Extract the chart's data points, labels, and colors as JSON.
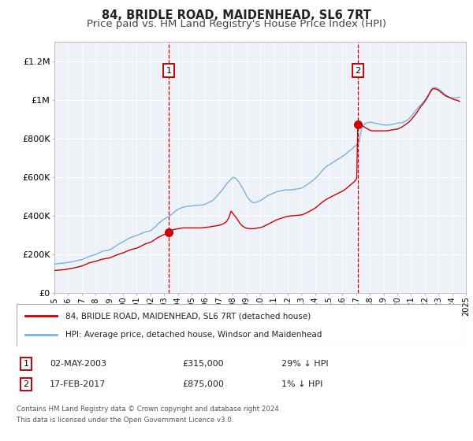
{
  "title": "84, BRIDLE ROAD, MAIDENHEAD, SL6 7RT",
  "subtitle": "Price paid vs. HM Land Registry's House Price Index (HPI)",
  "ylim": [
    0,
    1300000
  ],
  "yticks": [
    0,
    200000,
    400000,
    600000,
    800000,
    1000000,
    1200000
  ],
  "ytick_labels": [
    "£0",
    "£200K",
    "£400K",
    "£600K",
    "£800K",
    "£1M",
    "£1.2M"
  ],
  "hpi_color": "#7ab0e0",
  "price_color": "#cc0000",
  "bg_color": "#eef2f8",
  "grid_color": "#ffffff",
  "marker1_date": 2003.33,
  "marker1_price": 315000,
  "marker2_date": 2017.12,
  "marker2_price": 875000,
  "legend_label1": "84, BRIDLE ROAD, MAIDENHEAD, SL6 7RT (detached house)",
  "legend_label2": "HPI: Average price, detached house, Windsor and Maidenhead",
  "footnote1": "Contains HM Land Registry data © Crown copyright and database right 2024.",
  "footnote2": "This data is licensed under the Open Government Licence v3.0.",
  "title_fontsize": 10.5,
  "subtitle_fontsize": 9.5
}
